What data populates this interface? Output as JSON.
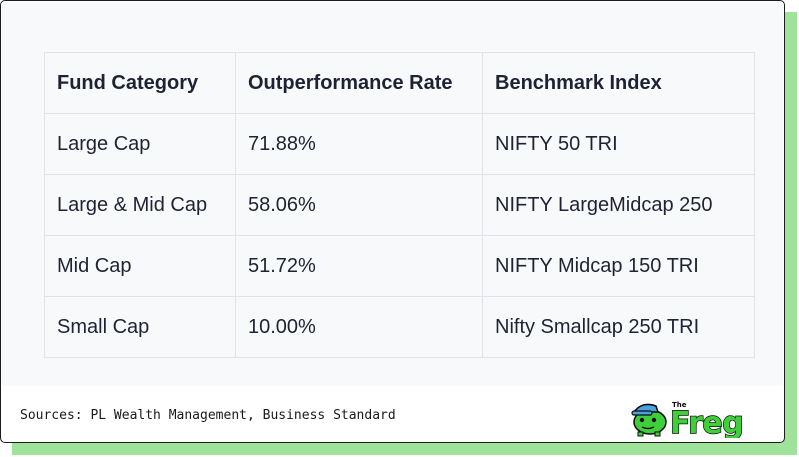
{
  "table": {
    "headers": [
      "Fund Category",
      "Outperformance Rate",
      "Benchmark Index"
    ],
    "rows": [
      [
        "Large Cap",
        "71.88%",
        "NIFTY 50 TRI"
      ],
      [
        "Large & Mid Cap",
        "58.06%",
        "NIFTY LargeMidcap 250"
      ],
      [
        "Mid Cap",
        "51.72%",
        "NIFTY Midcap 150 TRI"
      ],
      [
        "Small Cap",
        "10.00%",
        "Nifty Smallcap 250 TRI"
      ]
    ]
  },
  "footer": {
    "sources": "Sources: PL Wealth Management, Business Standard"
  },
  "logo": {
    "small_text": "The",
    "text": "Freg",
    "icon": "frog-mascot-icon"
  },
  "colors": {
    "shadow": "#9fe39a",
    "logo_green": "#3fcf3a",
    "mascot_cap": "#4aa3e0"
  }
}
